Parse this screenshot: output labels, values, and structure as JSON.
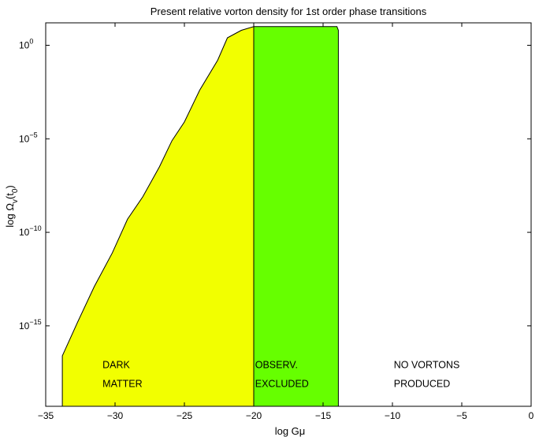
{
  "chart_data": {
    "type": "area",
    "title": "Present relative vorton density for 1st order phase transitions",
    "xlabel": "log Gμ",
    "ylabel": {
      "base": "log Ω",
      "sub1": "v",
      "mid": "(t",
      "sub2": "0",
      "end": ")"
    },
    "xlim": [
      -35,
      0
    ],
    "ylim": [
      -19.3,
      1.2
    ],
    "y_scale": "log",
    "grid": false,
    "x_ticks": [
      {
        "value": -35,
        "label": "−35"
      },
      {
        "value": -30,
        "label": "−30"
      },
      {
        "value": -25,
        "label": "−25"
      },
      {
        "value": -20,
        "label": "−20"
      },
      {
        "value": -15,
        "label": "−15"
      },
      {
        "value": -10,
        "label": "−10"
      },
      {
        "value": -5,
        "label": "−5"
      },
      {
        "value": 0,
        "label": "0"
      }
    ],
    "y_ticks": [
      {
        "value": 0,
        "base": "10",
        "exp": "0"
      },
      {
        "value": -5,
        "base": "10",
        "exp": "−5"
      },
      {
        "value": -10,
        "base": "10",
        "exp": "−10"
      },
      {
        "value": -15,
        "base": "10",
        "exp": "−15"
      }
    ],
    "regions": [
      {
        "name": "dark-matter",
        "color": "#f2ff00",
        "label_lines": [
          "DARK",
          "MATTER"
        ],
        "label_at": {
          "x": -30.9,
          "y1": -17.1,
          "y2": -18.1
        },
        "points": [
          [
            -33.8,
            -16.6
          ],
          [
            -32.7,
            -14.8
          ],
          [
            -31.5,
            -12.9
          ],
          [
            -30.2,
            -11.1
          ],
          [
            -29.1,
            -9.3
          ],
          [
            -28.0,
            -8.1
          ],
          [
            -26.8,
            -6.5
          ],
          [
            -25.9,
            -5.1
          ],
          [
            -25.0,
            -4.1
          ],
          [
            -23.9,
            -2.4
          ],
          [
            -22.6,
            -0.8
          ],
          [
            -21.9,
            0.4
          ],
          [
            -20.9,
            0.8
          ],
          [
            -20.0,
            1.0
          ],
          [
            -20.0,
            -19.3
          ],
          [
            -33.8,
            -19.3
          ]
        ]
      },
      {
        "name": "observationally-excluded",
        "color": "#66ff00",
        "label_lines": [
          "OBSERV.",
          "EXCLUDED"
        ],
        "label_at": {
          "x": -19.9,
          "y1": -17.1,
          "y2": -18.1
        },
        "points": [
          [
            -20.0,
            1.0
          ],
          [
            -14.0,
            1.0
          ],
          [
            -13.9,
            0.8
          ],
          [
            -13.9,
            -19.3
          ],
          [
            -20.0,
            -19.3
          ]
        ]
      },
      {
        "name": "no-vortons",
        "color": "#ffffff",
        "label_lines": [
          "NO VORTONS",
          "PRODUCED"
        ],
        "label_at": {
          "x": -9.9,
          "y1": -17.1,
          "y2": -18.1
        },
        "points": []
      }
    ]
  }
}
